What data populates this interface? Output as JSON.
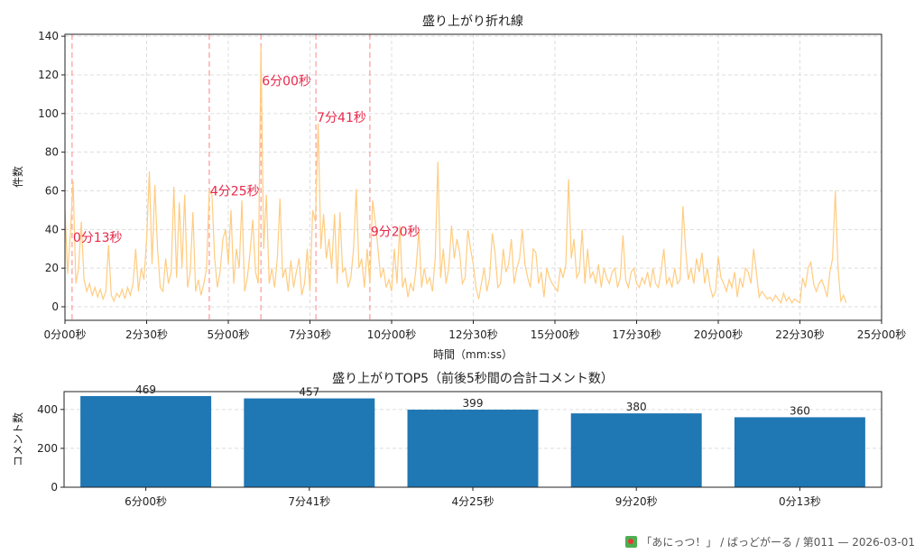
{
  "chart_data": [
    {
      "type": "line",
      "title": "盛り上がり折れ線",
      "xlabel": "時間（mm:ss）",
      "ylabel": "件数",
      "xlim": [
        0,
        1500
      ],
      "ylim": [
        -7,
        141
      ],
      "grid": true,
      "x_step_seconds": 5,
      "x_ticks": [
        0,
        150,
        300,
        450,
        600,
        750,
        900,
        1050,
        1200,
        1350,
        1500
      ],
      "x_tick_labels": [
        "0分00秒",
        "2分30秒",
        "5分00秒",
        "7分30秒",
        "10分00秒",
        "12分30秒",
        "15分00秒",
        "17分30秒",
        "20分00秒",
        "22分30秒",
        "25分00秒"
      ],
      "y_ticks": [
        0,
        20,
        40,
        60,
        80,
        100,
        120,
        140
      ],
      "y_tick_labels": [
        "0",
        "20",
        "40",
        "60",
        "80",
        "100",
        "120",
        "140"
      ],
      "line_color": "#ffcc80",
      "marker_color": "#ff8a8a",
      "annotation_color": "#e8284a",
      "values": [
        50,
        17,
        38,
        65,
        12,
        20,
        44,
        14,
        8,
        12,
        6,
        10,
        5,
        9,
        4,
        8,
        32,
        6,
        3,
        7,
        5,
        9,
        4,
        10,
        6,
        12,
        30,
        8,
        20,
        14,
        35,
        70,
        22,
        63,
        30,
        10,
        8,
        25,
        12,
        18,
        62,
        15,
        54,
        20,
        58,
        10,
        18,
        49,
        8,
        14,
        6,
        12,
        20,
        60,
        58,
        25,
        10,
        18,
        35,
        40,
        22,
        50,
        12,
        30,
        20,
        55,
        8,
        15,
        28,
        45,
        18,
        12,
        135,
        30,
        58,
        12,
        20,
        10,
        25,
        56,
        15,
        20,
        8,
        24,
        10,
        18,
        25,
        6,
        12,
        30,
        8,
        50,
        44,
        95,
        30,
        48,
        25,
        35,
        20,
        48,
        12,
        49,
        18,
        20,
        10,
        15,
        30,
        61,
        20,
        25,
        10,
        30,
        12,
        55,
        44,
        30,
        15,
        20,
        10,
        14,
        8,
        30,
        12,
        42,
        10,
        15,
        5,
        12,
        8,
        20,
        40,
        10,
        20,
        12,
        15,
        8,
        25,
        75,
        15,
        30,
        12,
        20,
        42,
        25,
        35,
        28,
        12,
        15,
        40,
        30,
        22,
        10,
        4,
        12,
        20,
        8,
        15,
        38,
        28,
        10,
        12,
        30,
        18,
        22,
        35,
        12,
        20,
        25,
        40,
        22,
        15,
        10,
        30,
        28,
        12,
        18,
        5,
        20,
        15,
        12,
        10,
        8,
        20,
        15,
        22,
        66,
        25,
        35,
        15,
        18,
        40,
        12,
        30,
        15,
        18,
        12,
        22,
        10,
        20,
        15,
        12,
        18,
        20,
        10,
        15,
        37,
        14,
        10,
        18,
        20,
        12,
        10,
        15,
        12,
        18,
        10,
        20,
        12,
        10,
        18,
        30,
        12,
        15,
        10,
        20,
        12,
        14,
        52,
        30,
        14,
        20,
        12,
        25,
        18,
        28,
        12,
        20,
        10,
        5,
        8,
        26,
        15,
        12,
        8,
        14,
        10,
        18,
        5,
        15,
        10,
        20,
        18,
        12,
        30,
        18,
        5,
        8,
        6,
        4,
        5,
        3,
        6,
        4,
        2,
        7,
        3,
        5,
        2,
        4,
        3,
        2,
        15,
        10,
        20,
        23,
        12,
        8,
        12,
        14,
        10,
        5,
        18,
        25,
        60,
        20,
        3,
        6,
        2
      ],
      "annotations": [
        {
          "x": 13,
          "label": "0分13秒",
          "label_y": 36
        },
        {
          "x": 265,
          "label": "4分25秒",
          "label_y": 60
        },
        {
          "x": 360,
          "label": "6分00秒",
          "label_y": 117
        },
        {
          "x": 461,
          "label": "7分41秒",
          "label_y": 98
        },
        {
          "x": 560,
          "label": "9分20秒",
          "label_y": 39
        }
      ]
    },
    {
      "type": "bar",
      "title": "盛り上がりTOP5（前後5秒間の合計コメント数）",
      "xlabel": "",
      "ylabel": "コメント数",
      "ylim": [
        0,
        492
      ],
      "grid": true,
      "y_ticks": [
        0,
        200,
        400
      ],
      "y_tick_labels": [
        "0",
        "200",
        "400"
      ],
      "bar_color": "#1f77b4",
      "categories": [
        "6分00秒",
        "7分41秒",
        "4分25秒",
        "9分20秒",
        "0分13秒"
      ],
      "values": [
        469,
        457,
        399,
        380,
        360
      ],
      "value_labels": [
        "469",
        "457",
        "399",
        "380",
        "360"
      ]
    }
  ],
  "footer": {
    "icon": "anime-logo-icon",
    "text": "「あにっつ！」 / ばっどがーる / 第011 — 2026-03-01"
  }
}
